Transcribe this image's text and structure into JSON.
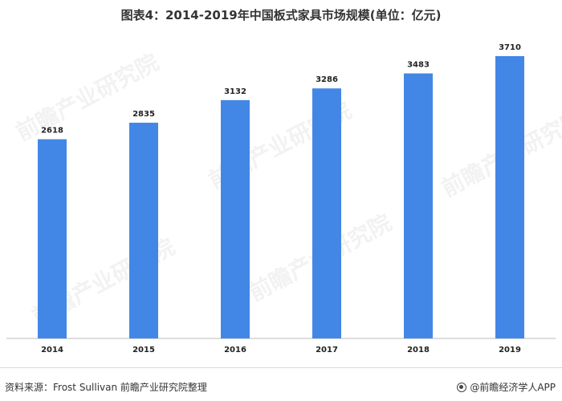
{
  "title": "图表4：2014-2019年中国板式家具市场规模(单位：亿元)",
  "chart_data": {
    "type": "bar",
    "title": "图表4：2014-2019年中国板式家具市场规模(单位：亿元)",
    "categories": [
      "2014",
      "2015",
      "2016",
      "2017",
      "2018",
      "2019"
    ],
    "values": [
      2618,
      2835,
      3132,
      3286,
      3483,
      3710
    ],
    "ylim": [
      0,
      3710
    ],
    "grid": false,
    "bar_color": "#4287e6"
  },
  "footer": {
    "source": "资料来源：Frost Sullivan 前瞻产业研究院整理",
    "brand": "@前瞻经济学人APP"
  },
  "watermark": "前瞻产业研究院"
}
